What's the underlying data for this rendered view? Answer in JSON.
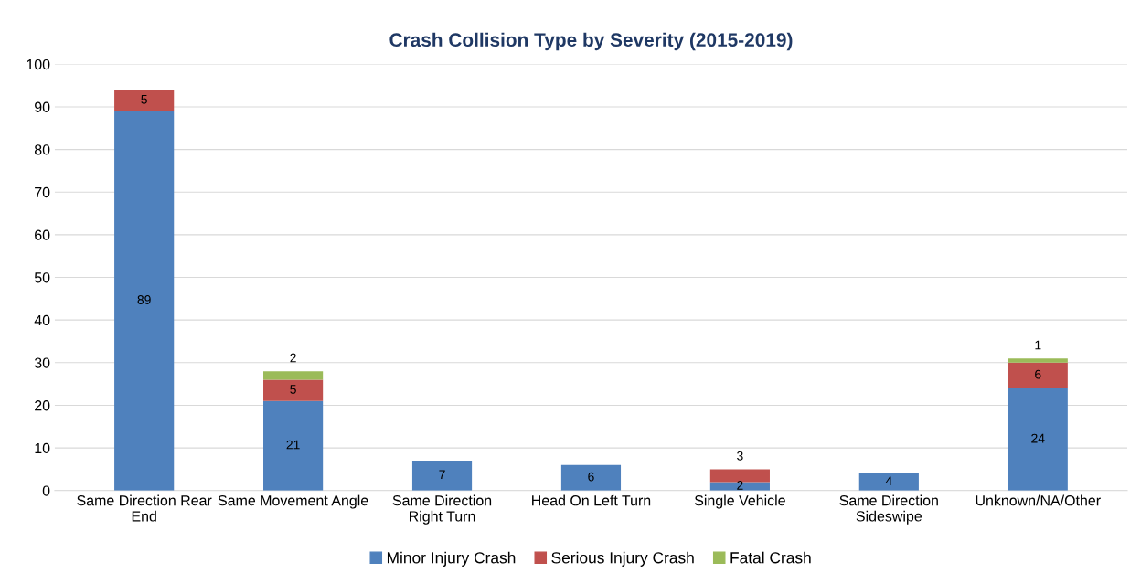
{
  "chart_data": {
    "type": "bar",
    "title": "Crash Collision Type by Severity (2015-2019)",
    "categories": [
      "Same Direction Rear End",
      "Same Movement Angle",
      "Same Direction Right Turn",
      "Head On Left Turn",
      "Single Vehicle",
      "Same Direction Sideswipe",
      "Unknown/NA/Other"
    ],
    "series": [
      {
        "name": "Minor Injury Crash",
        "color": "#4f81bd",
        "values": [
          89,
          21,
          7,
          6,
          2,
          4,
          24
        ]
      },
      {
        "name": "Serious Injury Crash",
        "color": "#c0504d",
        "values": [
          5,
          5,
          null,
          null,
          3,
          null,
          6
        ]
      },
      {
        "name": "Fatal Crash",
        "color": "#9bbb59",
        "values": [
          null,
          2,
          null,
          null,
          null,
          null,
          1
        ]
      }
    ],
    "stacked": true,
    "ylim": [
      0,
      100
    ],
    "yticks": [
      0,
      10,
      20,
      30,
      40,
      50,
      60,
      70,
      80,
      90,
      100
    ],
    "grid": "y",
    "legend": "bottom",
    "data_labels": true
  }
}
